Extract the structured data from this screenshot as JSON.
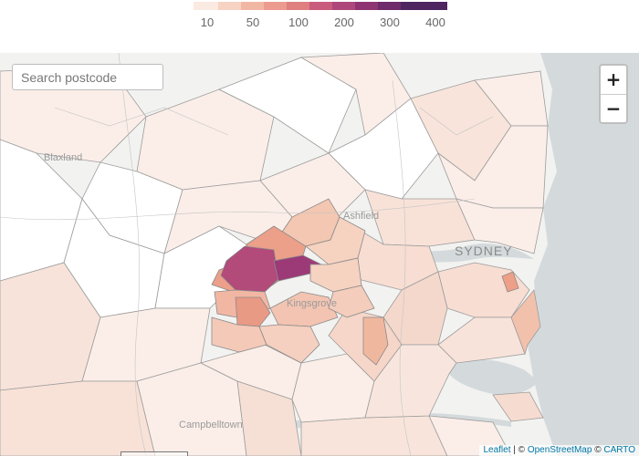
{
  "legend": {
    "colors": [
      "#fbeae2",
      "#f7d3c3",
      "#f2b7a3",
      "#eb9c8e",
      "#df7f80",
      "#c95b7c",
      "#ae477a",
      "#8e3472",
      "#6e2a6a",
      "#4e2560"
    ],
    "labels": [
      "10",
      "50",
      "100",
      "200",
      "300",
      "400"
    ]
  },
  "search": {
    "placeholder": "Search postcode"
  },
  "zoom": {
    "in": "+",
    "out": "−"
  },
  "places": {
    "ashfield": "Ashfield",
    "kingsgrove": "Kingsgrove",
    "blaxland": "Blaxland",
    "sydney": "SYDNEY",
    "campbelltown": "Campbelltown"
  },
  "attribution": {
    "leaflet": "Leaflet",
    "sep1": " | © ",
    "osm": "OpenStreetMap",
    "sep2": " © ",
    "carto": "CARTO"
  },
  "colors": {
    "water": "#d4dadc",
    "land": "#f2f2f0",
    "region_stroke": "#9c9c9c",
    "highest": "#9c3a78"
  }
}
